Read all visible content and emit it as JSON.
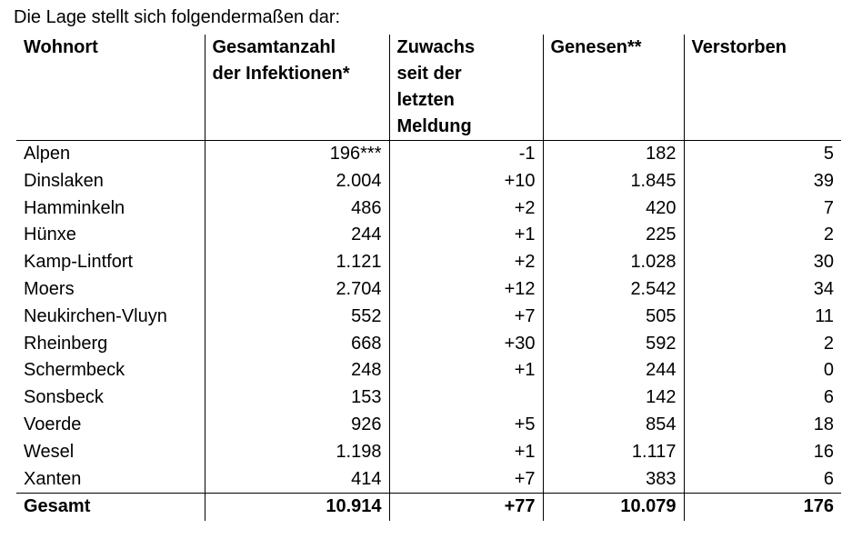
{
  "intro": "Die Lage stellt sich folgendermaßen dar:",
  "table": {
    "header": [
      [
        "Wohnort"
      ],
      [
        "Gesamtanzahl",
        "der Infektionen*"
      ],
      [
        "Zuwachs",
        "seit der",
        "letzten",
        "Meldung"
      ],
      [
        "Genesen**"
      ],
      [
        "Verstorben"
      ]
    ],
    "rows": [
      [
        "Alpen",
        "196***",
        "-1",
        "182",
        "5"
      ],
      [
        "Dinslaken",
        "2.004",
        "+10",
        "1.845",
        "39"
      ],
      [
        "Hamminkeln",
        "486",
        "+2",
        "420",
        "7"
      ],
      [
        "Hünxe",
        "244",
        "+1",
        "225",
        "2"
      ],
      [
        "Kamp-Lintfort",
        "1.121",
        "+2",
        "1.028",
        "30"
      ],
      [
        "Moers",
        "2.704",
        "+12",
        "2.542",
        "34"
      ],
      [
        "Neukirchen-Vluyn",
        "552",
        "+7",
        "505",
        "11"
      ],
      [
        "Rheinberg",
        "668",
        "+30",
        "592",
        "2"
      ],
      [
        "Schermbeck",
        "248",
        "+1",
        "244",
        "0"
      ],
      [
        "Sonsbeck",
        "153",
        null,
        "142",
        "6"
      ],
      [
        "Voerde",
        "926",
        "+5",
        "854",
        "18"
      ],
      [
        "Wesel",
        "1.198",
        "+1",
        "1.117",
        "16"
      ],
      [
        "Xanten",
        "414",
        "+7",
        "383",
        "6"
      ]
    ],
    "total": [
      "Gesamt",
      "10.914",
      "+77",
      "10.079",
      "176"
    ]
  }
}
